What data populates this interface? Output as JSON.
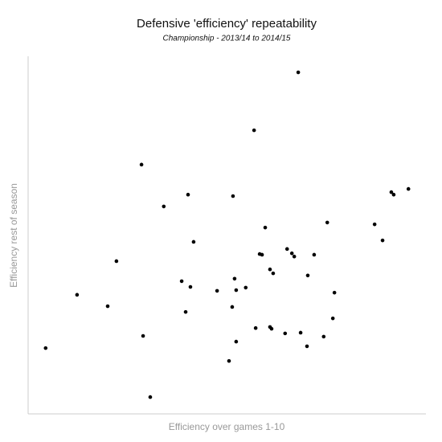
{
  "chart_data": {
    "type": "scatter",
    "title": "Defensive 'efficiency' repeatability",
    "subtitle": "Championship - 2013/14 to 2014/15",
    "x_label": "Efficiency over games 1-10",
    "y_label": "Efficiency rest of season",
    "color": "#000000",
    "x": [
      67.9,
      56.8,
      28.5,
      34.1,
      40.2,
      51.5,
      91.3,
      91.9,
      95.6,
      75.2,
      87.1,
      89.1,
      59.6,
      41.6,
      22.2,
      58.2,
      58.8,
      65.1,
      66.3,
      66.9,
      71.9,
      60.8,
      61.6,
      70.3,
      51.9,
      38.6,
      40.8,
      47.5,
      52.3,
      54.7,
      77.0,
      12.3,
      20.0,
      51.3,
      39.6,
      76.6,
      57.2,
      60.8,
      61.2,
      64.6,
      68.5,
      74.3,
      28.9,
      52.3,
      70.1,
      4.4,
      50.5,
      30.7
    ],
    "values": [
      95.5,
      79.3,
      69.7,
      58.0,
      61.3,
      60.9,
      62.0,
      61.3,
      62.9,
      53.5,
      53.0,
      48.5,
      52.1,
      48.1,
      42.7,
      44.7,
      44.5,
      46.1,
      44.9,
      44.0,
      44.5,
      40.4,
      39.3,
      38.7,
      37.8,
      37.1,
      35.5,
      34.4,
      34.6,
      35.3,
      33.9,
      33.3,
      30.1,
      29.9,
      28.5,
      26.7,
      24.0,
      24.3,
      23.8,
      22.5,
      22.7,
      21.6,
      21.8,
      20.2,
      18.9,
      18.4,
      14.8,
      4.7
    ],
    "xlim": [
      0,
      100
    ],
    "ylim": [
      0,
      100
    ]
  }
}
